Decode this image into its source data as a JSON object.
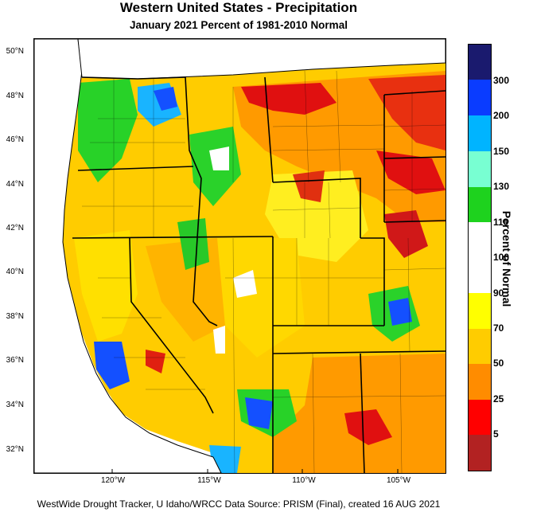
{
  "title": "Western United States - Precipitation",
  "subtitle": "January 2021  Percent of 1981-2010 Normal",
  "credit": "WestWide Drought Tracker, U Idaho/WRCC Data Source: PRISM (Final), created 16 AUG 2021",
  "lat_labels": [
    "50°N",
    "48°N",
    "46°N",
    "44°N",
    "42°N",
    "40°N",
    "38°N",
    "36°N",
    "34°N",
    "32°N"
  ],
  "lon_labels": [
    "120°W",
    "115°W",
    "110°W",
    "105°W"
  ],
  "legend": {
    "title": "Percent of Normal",
    "labels": [
      "300",
      "200",
      "150",
      "130",
      "110",
      "100",
      "90",
      "70",
      "50",
      "25",
      "5"
    ],
    "colors": [
      "#1a1a6e",
      "#0a3cff",
      "#00b4ff",
      "#78ffd2",
      "#1ed21e",
      "#ffffff",
      "#ffffff",
      "#ffff00",
      "#ffcc00",
      "#ff8c00",
      "#ff0000",
      "#b22222"
    ]
  },
  "map_colors": {
    "very_dry": "#e01010",
    "dry": "#ff8c00",
    "below": "#ffc800",
    "slightly_below": "#ffff1e",
    "near": "#ffffff",
    "above": "#28d228",
    "wet": "#19b4ff",
    "very_wet": "#1450ff",
    "water": "#ffffff"
  }
}
